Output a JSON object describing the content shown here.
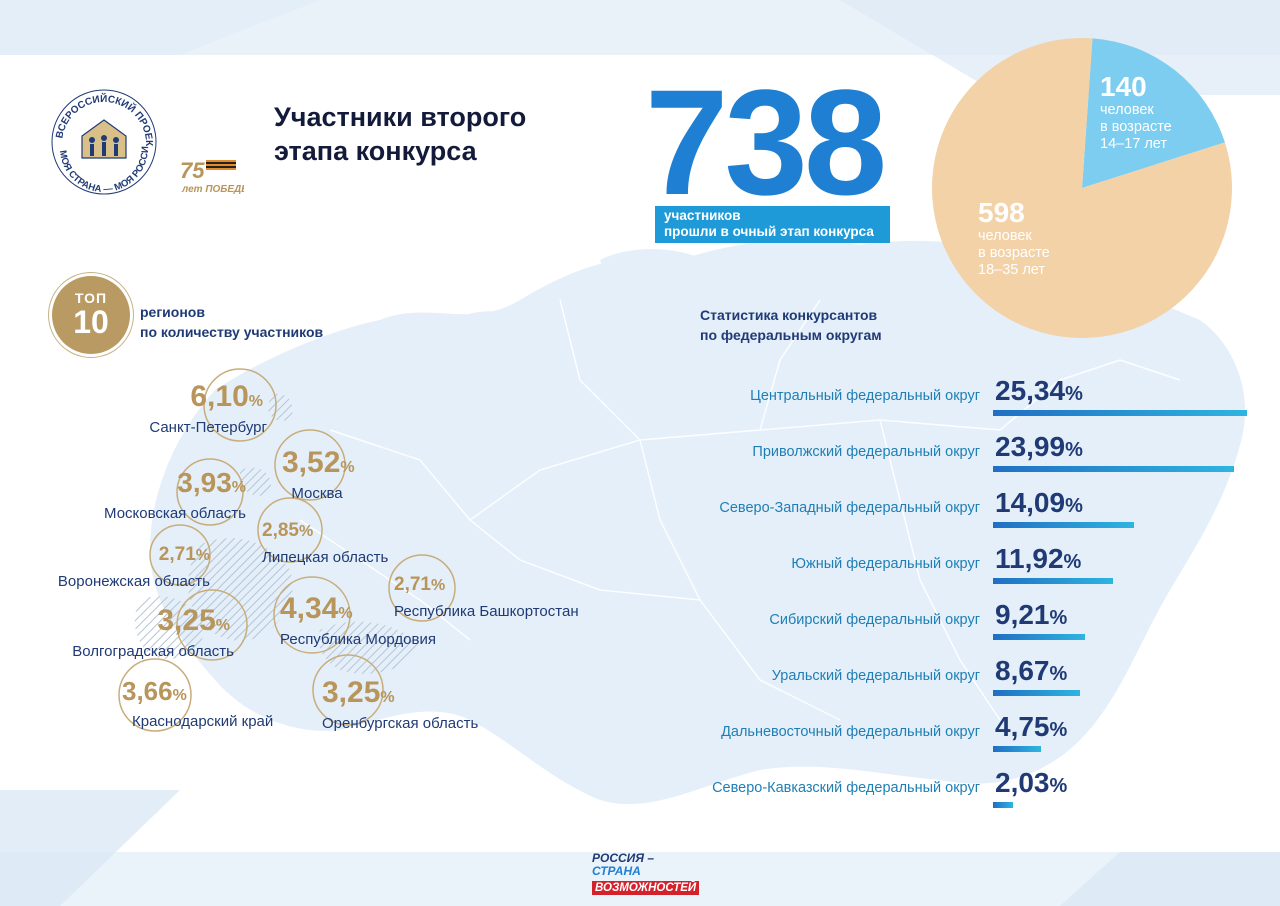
{
  "header": {
    "title": "Участники второго этапа конкурса",
    "logo": {
      "arc_text": "ВСЕРОССИЙСКИЙ ПРОЕКТ МОЯ СТРАНА — МОЯ РОССИЯ",
      "anniversary": "75 лет ПОБЕДЫ"
    }
  },
  "total": {
    "value": "738",
    "caption_line1": "участников",
    "caption_line2": "прошли в очный этап конкурса"
  },
  "age_groups": [
    {
      "value": "140",
      "line1": "человек",
      "line2": "в возрасте",
      "line3": "14–17 лет",
      "count": 140,
      "color": "#7ccdf0"
    },
    {
      "value": "598",
      "line1": "человек",
      "line2": "в возрасте",
      "line3": "18–35 лет",
      "count": 598,
      "color": "#f3d2a8"
    }
  ],
  "top_regions": {
    "badge_top": "ТОП",
    "badge_num": "10",
    "caption_line1": "регионов",
    "caption_line2": "по количеству участников",
    "items": [
      {
        "value": "6,10",
        "unit": "%",
        "name": "Санкт-Петербург"
      },
      {
        "value": "3,52",
        "unit": "%",
        "name": "Москва"
      },
      {
        "value": "3,93",
        "unit": "%",
        "name": "Московская область"
      },
      {
        "value": "2,85",
        "unit": "%",
        "name": "Липецкая область"
      },
      {
        "value": "2,71",
        "unit": "%",
        "name": "Воронежская область"
      },
      {
        "value": "2,71",
        "unit": "%",
        "name": "Республика Башкортостан"
      },
      {
        "value": "3,25",
        "unit": "%",
        "name": "Волгоградская область"
      },
      {
        "value": "4,34",
        "unit": "%",
        "name": "Республика Мордовия"
      },
      {
        "value": "3,66",
        "unit": "%",
        "name": "Краснодарский край"
      },
      {
        "value": "3,25",
        "unit": "%",
        "name": "Оренбургская область"
      }
    ]
  },
  "districts": {
    "caption_line1": "Статистика конкурсантов",
    "caption_line2": "по федеральным округам"
  },
  "chart_data": {
    "type": "bar",
    "orientation": "horizontal",
    "title": "Статистика конкурсантов по федеральным округам",
    "unit": "%",
    "categories": [
      "Центральный федеральный округ",
      "Приволжский федеральный округ",
      "Северо-Западный федеральный округ",
      "Южный федеральный округ",
      "Сибирский федеральный округ",
      "Уральский федеральный округ",
      "Дальневосточный федеральный округ",
      "Северо-Кавказский федеральный округ"
    ],
    "values": [
      25.34,
      23.99,
      14.09,
      11.92,
      9.21,
      8.67,
      4.75,
      2.03
    ],
    "value_labels": [
      "25,34",
      "23,99",
      "14,09",
      "11,92",
      "9,21",
      "8,67",
      "4,75",
      "2,03"
    ],
    "colors": {
      "bar_start": "#1f6fc4",
      "bar_end": "#2fb4e0"
    }
  },
  "footer": {
    "line1": "РОССИЯ –",
    "line2": "СТРАНА",
    "line3": "ВОЗМОЖНОСТЕЙ"
  },
  "colors": {
    "accent_blue": "#1f7fd3",
    "gold": "#b8955a",
    "navy": "#1f3a75"
  }
}
